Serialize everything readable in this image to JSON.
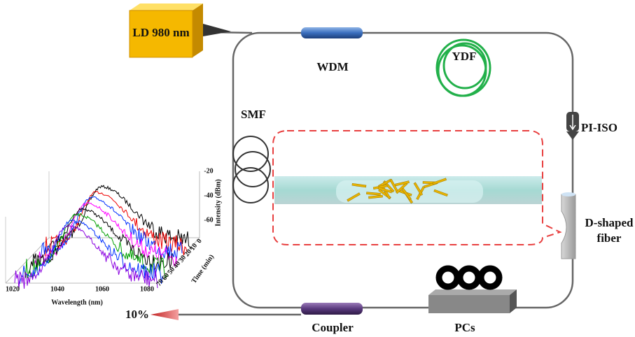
{
  "source": {
    "label": "LD 980 nm"
  },
  "components": {
    "wdm": "WDM",
    "ydf": "YDF",
    "smf": "SMF",
    "isolator": "PI-ISO",
    "d_fiber": [
      "D-shaped",
      "fiber"
    ],
    "pcs": "PCs",
    "coupler": "Coupler",
    "output": "10%"
  },
  "inset": {
    "x_label": "Wavelength (nm)",
    "x_ticks": [
      "1020",
      "1040",
      "1060",
      "1080"
    ],
    "y_label": "Intensity (dBm)",
    "y_ticks": [
      "-20",
      "-40",
      "-60"
    ],
    "z_label": "Time (min)",
    "z_ticks": [
      "0",
      "10",
      "20",
      "30",
      "40",
      "50",
      "60",
      "70"
    ]
  }
}
